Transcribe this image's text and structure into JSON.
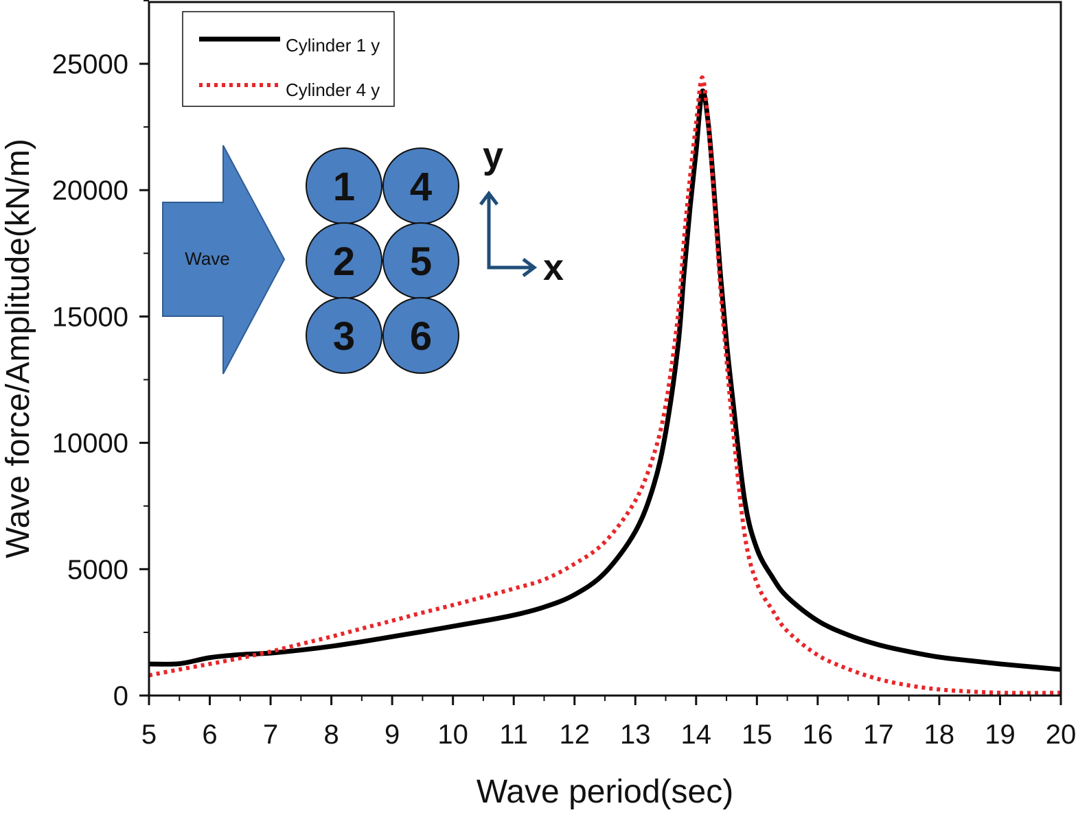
{
  "chart_data": {
    "type": "line",
    "title": "",
    "xlabel": "Wave period(sec)",
    "ylabel": "Wave force/Amplitude(kN/m)",
    "xlim": [
      5,
      20
    ],
    "ylim": [
      0,
      27500
    ],
    "x_ticks": [
      5,
      6,
      7,
      8,
      9,
      10,
      11,
      12,
      13,
      14,
      15,
      16,
      17,
      18,
      19,
      20
    ],
    "y_ticks": [
      0,
      5000,
      10000,
      15000,
      20000,
      25000
    ],
    "grid": false,
    "legend_position": "top-left",
    "series": [
      {
        "name": "Cylinder 1 y",
        "color": "#000000",
        "style": "solid",
        "x": [
          5,
          5.5,
          6,
          6.5,
          7,
          7.5,
          8,
          8.5,
          9,
          9.5,
          10,
          10.5,
          11,
          11.5,
          12,
          12.5,
          13,
          13.3,
          13.5,
          13.7,
          13.8,
          13.9,
          14,
          14.1,
          14.2,
          14.3,
          14.4,
          14.5,
          14.6,
          14.8,
          15,
          15.25,
          15.5,
          16,
          16.5,
          17,
          17.5,
          18,
          18.5,
          19,
          19.5,
          20
        ],
        "y": [
          1250,
          1260,
          1500,
          1620,
          1680,
          1800,
          1950,
          2130,
          2330,
          2530,
          2740,
          2950,
          3180,
          3500,
          3990,
          4860,
          6490,
          8300,
          10420,
          13800,
          16670,
          19300,
          21550,
          23900,
          22640,
          19800,
          16670,
          14000,
          11780,
          7710,
          5810,
          4700,
          3900,
          2960,
          2400,
          2010,
          1740,
          1520,
          1380,
          1250,
          1140,
          1030
        ]
      },
      {
        "name": "Cylinder 4 y",
        "color": "#e8262a",
        "style": "dotted",
        "x": [
          5,
          5.5,
          6,
          6.5,
          7,
          7.5,
          8,
          8.5,
          9,
          9.5,
          10,
          10.5,
          11,
          11.5,
          12,
          12.5,
          13,
          13.3,
          13.5,
          13.7,
          13.8,
          13.9,
          14,
          14.1,
          14.2,
          14.3,
          14.4,
          14.5,
          14.6,
          14.8,
          15,
          15.25,
          15.5,
          16,
          16.5,
          17,
          17.5,
          18,
          18.5,
          19,
          19.5,
          20
        ],
        "y": [
          800,
          1030,
          1250,
          1480,
          1740,
          2040,
          2330,
          2650,
          2960,
          3280,
          3580,
          3900,
          4230,
          4590,
          5210,
          6080,
          7710,
          9500,
          11510,
          15000,
          18020,
          20500,
          22640,
          24460,
          22640,
          19500,
          16120,
          13300,
          10690,
          6350,
          4450,
          3400,
          2550,
          1600,
          1050,
          650,
          400,
          240,
          160,
          110,
          100,
          110
        ]
      }
    ],
    "inset": {
      "arrow_label": "Wave",
      "cylinders": [
        "1",
        "4",
        "2",
        "5",
        "3",
        "6"
      ],
      "axis_y": "y",
      "axis_x": "x",
      "cylinder_color": "#4a7fc1",
      "axis_color": "#1f4e79"
    }
  }
}
